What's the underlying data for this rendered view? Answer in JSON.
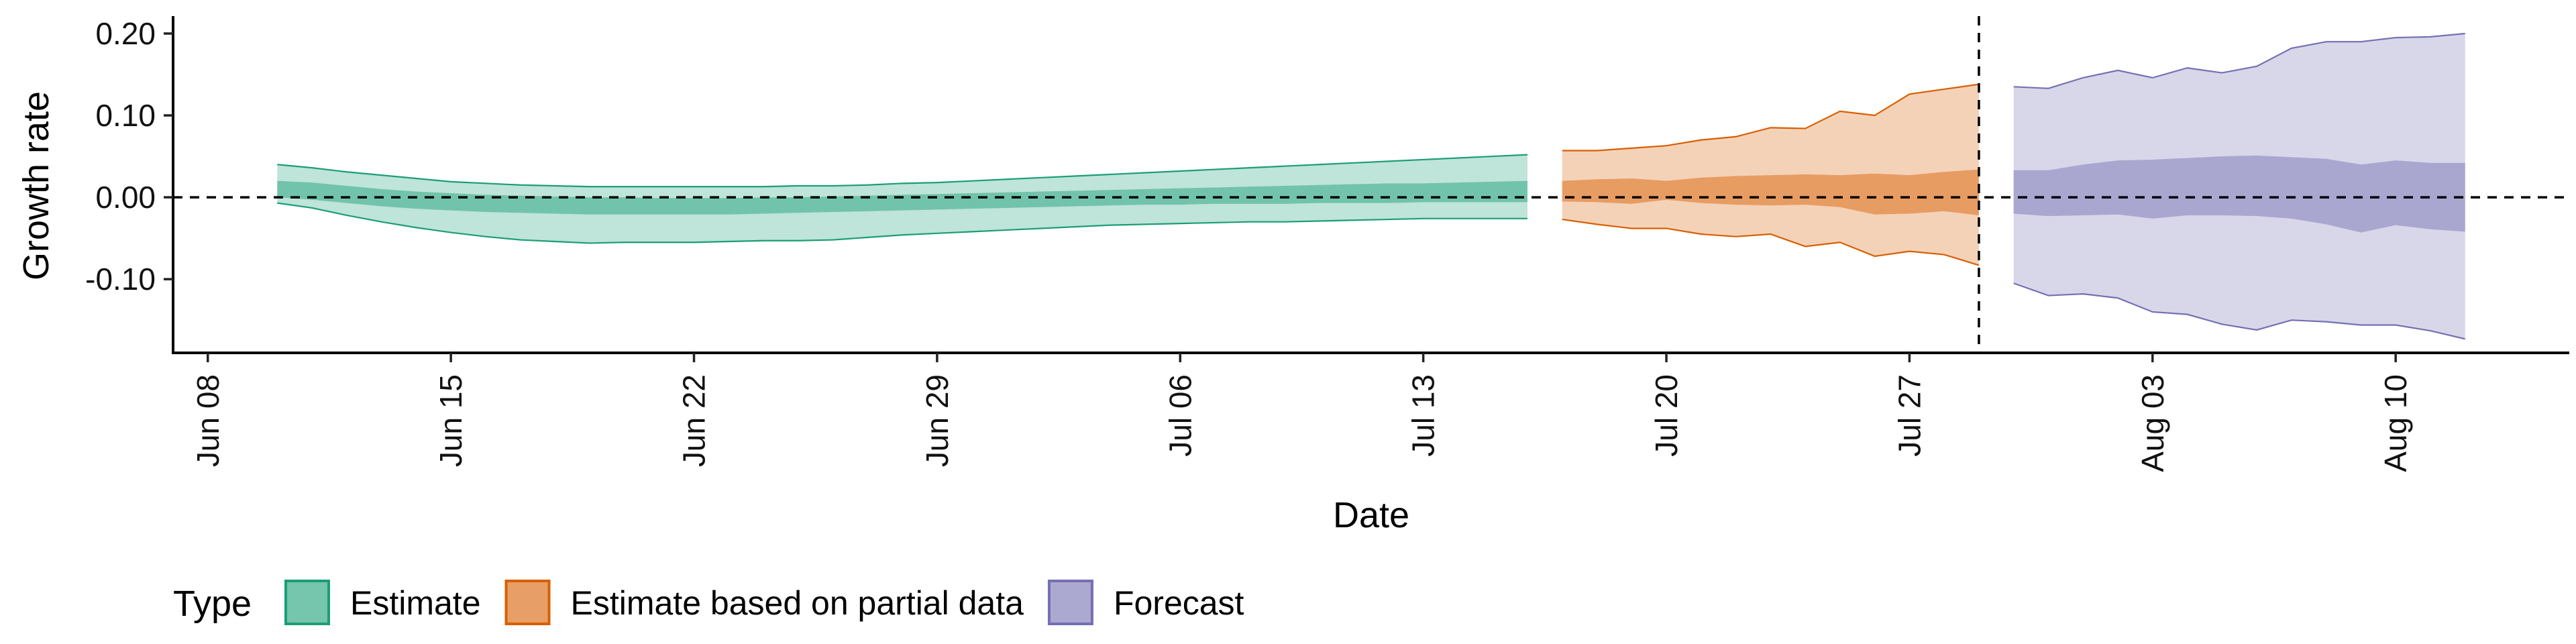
{
  "chart_data": {
    "type": "area",
    "xlabel": "Date",
    "ylabel": "Growth rate",
    "xlim": [
      "2020-06-07",
      "2020-08-15"
    ],
    "ylim": [
      -0.19,
      0.218
    ],
    "x_ticks": [
      {
        "date": "2020-06-08",
        "label": "Jun 08"
      },
      {
        "date": "2020-06-15",
        "label": "Jun 15"
      },
      {
        "date": "2020-06-22",
        "label": "Jun 22"
      },
      {
        "date": "2020-06-29",
        "label": "Jun 29"
      },
      {
        "date": "2020-07-06",
        "label": "Jul 06"
      },
      {
        "date": "2020-07-13",
        "label": "Jul 13"
      },
      {
        "date": "2020-07-20",
        "label": "Jul 20"
      },
      {
        "date": "2020-07-27",
        "label": "Jul 27"
      },
      {
        "date": "2020-08-03",
        "label": "Aug 03"
      },
      {
        "date": "2020-08-10",
        "label": "Aug 10"
      }
    ],
    "y_ticks": [
      {
        "value": 0.2,
        "label": "0.20"
      },
      {
        "value": 0.1,
        "label": "0.10"
      },
      {
        "value": 0.0,
        "label": "0.00"
      },
      {
        "value": -0.1,
        "label": "-0.10"
      }
    ],
    "hline": 0.0,
    "vline": "2020-07-29",
    "legend": {
      "title": "Type",
      "position": "bottom"
    },
    "series": [
      {
        "name": "Estimate",
        "color": "#1b9e77",
        "dates": [
          "2020-06-10",
          "2020-06-11",
          "2020-06-12",
          "2020-06-13",
          "2020-06-14",
          "2020-06-15",
          "2020-06-16",
          "2020-06-17",
          "2020-06-18",
          "2020-06-19",
          "2020-06-20",
          "2020-06-21",
          "2020-06-22",
          "2020-06-23",
          "2020-06-24",
          "2020-06-25",
          "2020-06-26",
          "2020-06-27",
          "2020-06-28",
          "2020-06-29",
          "2020-06-30",
          "2020-07-01",
          "2020-07-02",
          "2020-07-03",
          "2020-07-04",
          "2020-07-05",
          "2020-07-06",
          "2020-07-07",
          "2020-07-08",
          "2020-07-09",
          "2020-07-10",
          "2020-07-11",
          "2020-07-12",
          "2020-07-13",
          "2020-07-14",
          "2020-07-15",
          "2020-07-16"
        ],
        "outer_upper": [
          0.04,
          0.036,
          0.031,
          0.027,
          0.023,
          0.019,
          0.017,
          0.015,
          0.014,
          0.013,
          0.013,
          0.013,
          0.013,
          0.013,
          0.013,
          0.014,
          0.014,
          0.015,
          0.017,
          0.018,
          0.02,
          0.022,
          0.024,
          0.026,
          0.028,
          0.03,
          0.032,
          0.034,
          0.036,
          0.038,
          0.04,
          0.042,
          0.044,
          0.046,
          0.048,
          0.05,
          0.052
        ],
        "outer_lower": [
          -0.007,
          -0.013,
          -0.022,
          -0.03,
          -0.037,
          -0.043,
          -0.048,
          -0.052,
          -0.054,
          -0.056,
          -0.055,
          -0.055,
          -0.055,
          -0.054,
          -0.053,
          -0.053,
          -0.052,
          -0.049,
          -0.046,
          -0.044,
          -0.042,
          -0.04,
          -0.038,
          -0.036,
          -0.034,
          -0.033,
          -0.032,
          -0.031,
          -0.03,
          -0.03,
          -0.029,
          -0.028,
          -0.027,
          -0.026,
          -0.026,
          -0.026,
          -0.026
        ],
        "inner_upper": [
          0.02,
          0.018,
          0.014,
          0.01,
          0.007,
          0.005,
          0.003,
          0.002,
          0.001,
          0.0,
          0.0,
          -0.001,
          -0.001,
          -0.001,
          0.0,
          0.0,
          0.001,
          0.002,
          0.003,
          0.004,
          0.005,
          0.006,
          0.007,
          0.008,
          0.009,
          0.01,
          0.011,
          0.012,
          0.013,
          0.014,
          0.015,
          0.016,
          0.017,
          0.017,
          0.018,
          0.019,
          0.02
        ],
        "inner_lower": [
          0.0,
          -0.003,
          -0.007,
          -0.011,
          -0.014,
          -0.016,
          -0.018,
          -0.019,
          -0.02,
          -0.021,
          -0.021,
          -0.021,
          -0.021,
          -0.021,
          -0.02,
          -0.019,
          -0.018,
          -0.017,
          -0.016,
          -0.015,
          -0.014,
          -0.013,
          -0.012,
          -0.011,
          -0.01,
          -0.009,
          -0.009,
          -0.008,
          -0.008,
          -0.008,
          -0.007,
          -0.007,
          -0.007,
          -0.006,
          -0.006,
          -0.006,
          -0.006
        ]
      },
      {
        "name": "Estimate based on partial data",
        "color": "#d95f02",
        "dates": [
          "2020-07-17",
          "2020-07-18",
          "2020-07-19",
          "2020-07-20",
          "2020-07-21",
          "2020-07-22",
          "2020-07-23",
          "2020-07-24",
          "2020-07-25",
          "2020-07-26",
          "2020-07-27",
          "2020-07-28",
          "2020-07-29"
        ],
        "outer_upper": [
          0.057,
          0.057,
          0.06,
          0.063,
          0.07,
          0.074,
          0.085,
          0.084,
          0.105,
          0.1,
          0.126,
          0.132,
          0.138
        ],
        "outer_lower": [
          -0.027,
          -0.033,
          -0.038,
          -0.038,
          -0.045,
          -0.048,
          -0.045,
          -0.06,
          -0.055,
          -0.072,
          -0.066,
          -0.07,
          -0.083
        ],
        "inner_upper": [
          0.02,
          0.022,
          0.023,
          0.02,
          0.024,
          0.026,
          0.027,
          0.028,
          0.027,
          0.029,
          0.027,
          0.031,
          0.034
        ],
        "inner_lower": [
          -0.005,
          -0.006,
          -0.008,
          -0.003,
          -0.007,
          -0.009,
          -0.01,
          -0.009,
          -0.012,
          -0.021,
          -0.02,
          -0.017,
          -0.022
        ]
      },
      {
        "name": "Forecast",
        "color": "#7570b3",
        "dates": [
          "2020-07-30",
          "2020-07-31",
          "2020-08-01",
          "2020-08-02",
          "2020-08-03",
          "2020-08-04",
          "2020-08-05",
          "2020-08-06",
          "2020-08-07",
          "2020-08-08",
          "2020-08-09",
          "2020-08-10",
          "2020-08-11",
          "2020-08-12"
        ],
        "outer_upper": [
          0.135,
          0.133,
          0.146,
          0.155,
          0.146,
          0.158,
          0.152,
          0.16,
          0.182,
          0.19,
          0.19,
          0.195,
          0.196,
          0.2
        ],
        "outer_lower": [
          -0.105,
          -0.12,
          -0.118,
          -0.123,
          -0.14,
          -0.143,
          -0.155,
          -0.162,
          -0.15,
          -0.152,
          -0.156,
          -0.156,
          -0.163,
          -0.173
        ],
        "inner_upper": [
          0.033,
          0.033,
          0.04,
          0.045,
          0.046,
          0.048,
          0.05,
          0.051,
          0.049,
          0.047,
          0.04,
          0.045,
          0.042,
          0.042
        ],
        "inner_lower": [
          -0.02,
          -0.023,
          -0.022,
          -0.021,
          -0.026,
          -0.022,
          -0.022,
          -0.023,
          -0.026,
          -0.033,
          -0.043,
          -0.034,
          -0.039,
          -0.042
        ]
      }
    ]
  }
}
